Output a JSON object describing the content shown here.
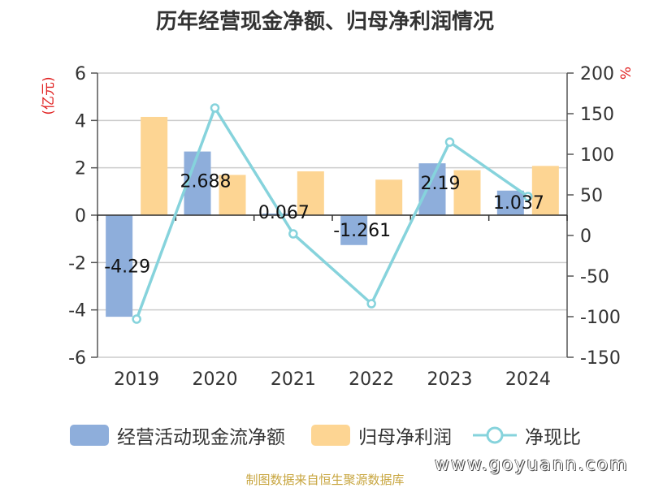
{
  "chart_data": {
    "type": "bar",
    "title": "历年经营现金净额、归母净利润情况",
    "categories": [
      "2019",
      "2020",
      "2021",
      "2022",
      "2023",
      "2024"
    ],
    "series": [
      {
        "name": "经营活动现金流净额",
        "type": "bar",
        "axis": "left",
        "color": "#8eaedb",
        "values": [
          -4.29,
          2.688,
          0.067,
          -1.261,
          2.19,
          1.037
        ],
        "labels": [
          "-4.29",
          "2.688",
          "0.067",
          "-1.261",
          "2.19",
          "1.037"
        ]
      },
      {
        "name": "归母净利润",
        "type": "bar",
        "axis": "left",
        "color": "#fdd593",
        "values": [
          4.15,
          1.7,
          1.85,
          1.5,
          1.9,
          2.08
        ]
      },
      {
        "name": "净现比",
        "type": "line",
        "axis": "right",
        "color": "#86d3dc",
        "values": [
          -103,
          157,
          2,
          -84,
          115,
          48
        ]
      }
    ],
    "left_axis": {
      "label": "(亿元)",
      "label_color": "#e02020",
      "min": -6,
      "max": 6,
      "ticks": [
        "6",
        "4",
        "2",
        "0",
        "-2",
        "-4",
        "-6"
      ]
    },
    "right_axis": {
      "label": "%",
      "label_color": "#e02020",
      "min": -150,
      "max": 200,
      "ticks": [
        "200",
        "150",
        "100",
        "50",
        "0",
        "-50",
        "-100",
        "-150"
      ]
    },
    "grid": true,
    "legend_position": "bottom"
  },
  "footer": {
    "source": "制图数据来自恒生聚源数据库",
    "watermark": "www.goyuann.com"
  }
}
